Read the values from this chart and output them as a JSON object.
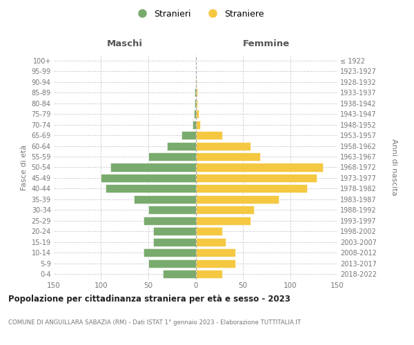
{
  "age_groups": [
    "0-4",
    "5-9",
    "10-14",
    "15-19",
    "20-24",
    "25-29",
    "30-34",
    "35-39",
    "40-44",
    "45-49",
    "50-54",
    "55-59",
    "60-64",
    "65-69",
    "70-74",
    "75-79",
    "80-84",
    "85-89",
    "90-94",
    "95-99",
    "100+"
  ],
  "birth_years": [
    "2018-2022",
    "2013-2017",
    "2008-2012",
    "2003-2007",
    "1998-2002",
    "1993-1997",
    "1988-1992",
    "1983-1987",
    "1978-1982",
    "1973-1977",
    "1968-1972",
    "1963-1967",
    "1958-1962",
    "1953-1957",
    "1948-1952",
    "1943-1947",
    "1938-1942",
    "1933-1937",
    "1928-1932",
    "1923-1927",
    "≤ 1922"
  ],
  "males": [
    35,
    50,
    55,
    45,
    45,
    55,
    50,
    65,
    95,
    100,
    90,
    50,
    30,
    15,
    3,
    2,
    1,
    1,
    0,
    0,
    0
  ],
  "females": [
    28,
    42,
    42,
    32,
    28,
    58,
    62,
    88,
    118,
    128,
    135,
    68,
    58,
    28,
    5,
    3,
    2,
    2,
    1,
    0,
    0
  ],
  "male_color": "#7aab6e",
  "female_color": "#f5c842",
  "grid_color": "#cccccc",
  "title": "Popolazione per cittadinanza straniera per età e sesso - 2023",
  "subtitle": "COMUNE DI ANGUILLARA SABAZIA (RM) - Dati ISTAT 1° gennaio 2023 - Elaborazione TUTTITALIA.IT",
  "legend_stranieri": "Stranieri",
  "legend_straniere": "Straniere",
  "header_left": "Maschi",
  "header_right": "Femmine",
  "ylabel_left": "Fasce di età",
  "ylabel_right": "Anni di nascita",
  "xlim": 150,
  "background_color": "#ffffff"
}
